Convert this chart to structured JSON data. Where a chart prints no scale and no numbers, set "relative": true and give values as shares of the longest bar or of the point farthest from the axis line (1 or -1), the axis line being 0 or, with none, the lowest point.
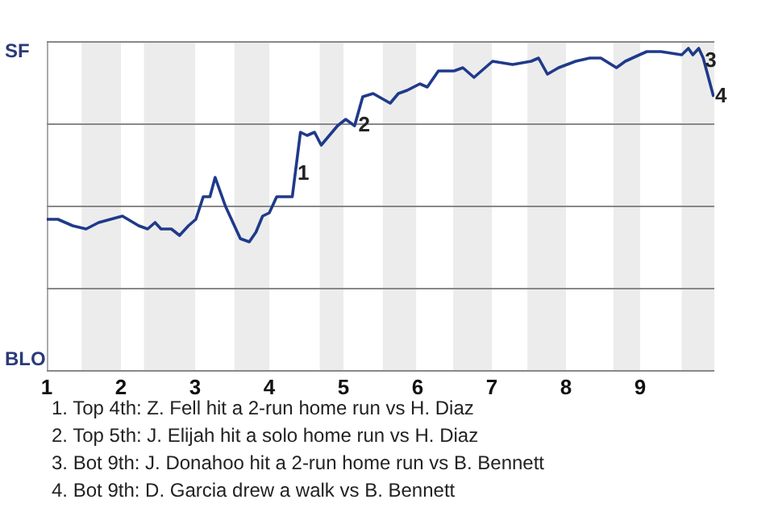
{
  "chart_data": {
    "type": "line",
    "relative": true,
    "x": [
      1,
      1.15,
      1.35,
      1.53,
      1.7,
      2.02,
      2.24,
      2.36,
      2.46,
      2.54,
      2.68,
      2.79,
      2.91,
      3.01,
      3.11,
      3.2,
      3.27,
      3.41,
      3.61,
      3.73,
      3.82,
      3.91,
      4,
      4.1,
      4.31,
      4.42,
      4.51,
      4.61,
      4.7,
      4.81,
      4.92,
      5.03,
      5.15,
      5.26,
      5.4,
      5.63,
      5.74,
      5.86,
      6.03,
      6.13,
      6.28,
      6.49,
      6.61,
      6.76,
      7.01,
      7.28,
      7.53,
      7.63,
      7.75,
      7.9,
      8.13,
      8.32,
      8.47,
      8.68,
      8.8,
      8.99,
      9.09,
      9.28,
      9.56,
      9.65,
      9.71,
      9.79,
      9.85,
      9.92,
      9.99
    ],
    "series": [
      {
        "color": "#1f3a8a",
        "values": [
          0.47,
          0.47,
          0.45,
          0.44,
          0.46,
          0.48,
          0.45,
          0.44,
          0.46,
          0.44,
          0.44,
          0.42,
          0.45,
          0.47,
          0.54,
          0.54,
          0.6,
          0.51,
          0.41,
          0.4,
          0.43,
          0.48,
          0.49,
          0.54,
          0.54,
          0.74,
          0.73,
          0.74,
          0.7,
          0.73,
          0.76,
          0.78,
          0.76,
          0.85,
          0.86,
          0.83,
          0.86,
          0.87,
          0.89,
          0.88,
          0.93,
          0.93,
          0.94,
          0.91,
          0.96,
          0.95,
          0.96,
          0.97,
          0.92,
          0.94,
          0.96,
          0.97,
          0.97,
          0.94,
          0.96,
          0.98,
          0.99,
          0.99,
          0.98,
          1,
          0.98,
          1,
          0.97,
          0.91,
          0.85
        ]
      }
    ],
    "xlim": [
      1,
      10
    ],
    "xticks": [
      1,
      2,
      3,
      4,
      5,
      6,
      7,
      8,
      9
    ],
    "marker": "none",
    "line_style": "solid",
    "legend": false,
    "ref_lines": [
      {
        "axis": "y",
        "value": 1.02,
        "label": "SF",
        "color": "#888888"
      },
      {
        "axis": "y",
        "value": 0.765,
        "label": null,
        "color": "#888888"
      },
      {
        "axis": "y",
        "value": 0.51,
        "label": null,
        "color": "#888888"
      },
      {
        "axis": "y",
        "value": 0.255,
        "label": null,
        "color": "#888888"
      },
      {
        "axis": "y",
        "value": 0,
        "label": "BLO",
        "color": "#888888"
      }
    ],
    "bands": [
      {
        "axis": "x",
        "from": 1.47,
        "to": 2,
        "color": "#ececec"
      },
      {
        "axis": "x",
        "from": 2.31,
        "to": 3,
        "color": "#ececec"
      },
      {
        "axis": "x",
        "from": 3.53,
        "to": 4,
        "color": "#ececec"
      },
      {
        "axis": "x",
        "from": 4.68,
        "to": 5,
        "color": "#ececec"
      },
      {
        "axis": "x",
        "from": 5.53,
        "to": 5.98,
        "color": "#ececec"
      },
      {
        "axis": "x",
        "from": 6.48,
        "to": 7,
        "color": "#ececec"
      },
      {
        "axis": "x",
        "from": 7.48,
        "to": 8,
        "color": "#ececec"
      },
      {
        "axis": "x",
        "from": 8.64,
        "to": 9,
        "color": "#ececec"
      },
      {
        "axis": "x",
        "from": 9.56,
        "to": 10,
        "color": "#ececec"
      }
    ],
    "annotations": [
      {
        "text": "1",
        "x": 4.36,
        "y": 0.61
      },
      {
        "text": "2",
        "x": 5.18,
        "y": 0.76
      },
      {
        "text": "3",
        "x": 9.85,
        "y": 0.96
      },
      {
        "text": "4",
        "x": 9.99,
        "y": 0.85
      },
      "1. Top 4th: Z. Fell hit a 2-run home run vs H. Diaz",
      "2. Top 5th: J. Elijah hit a solo home run vs H. Diaz",
      "3. Bot 9th: J. Donahoo hit a 2-run home run vs B. Bennett",
      "4. Bot 9th: D. Garcia drew a walk vs B. Bennett"
    ]
  }
}
